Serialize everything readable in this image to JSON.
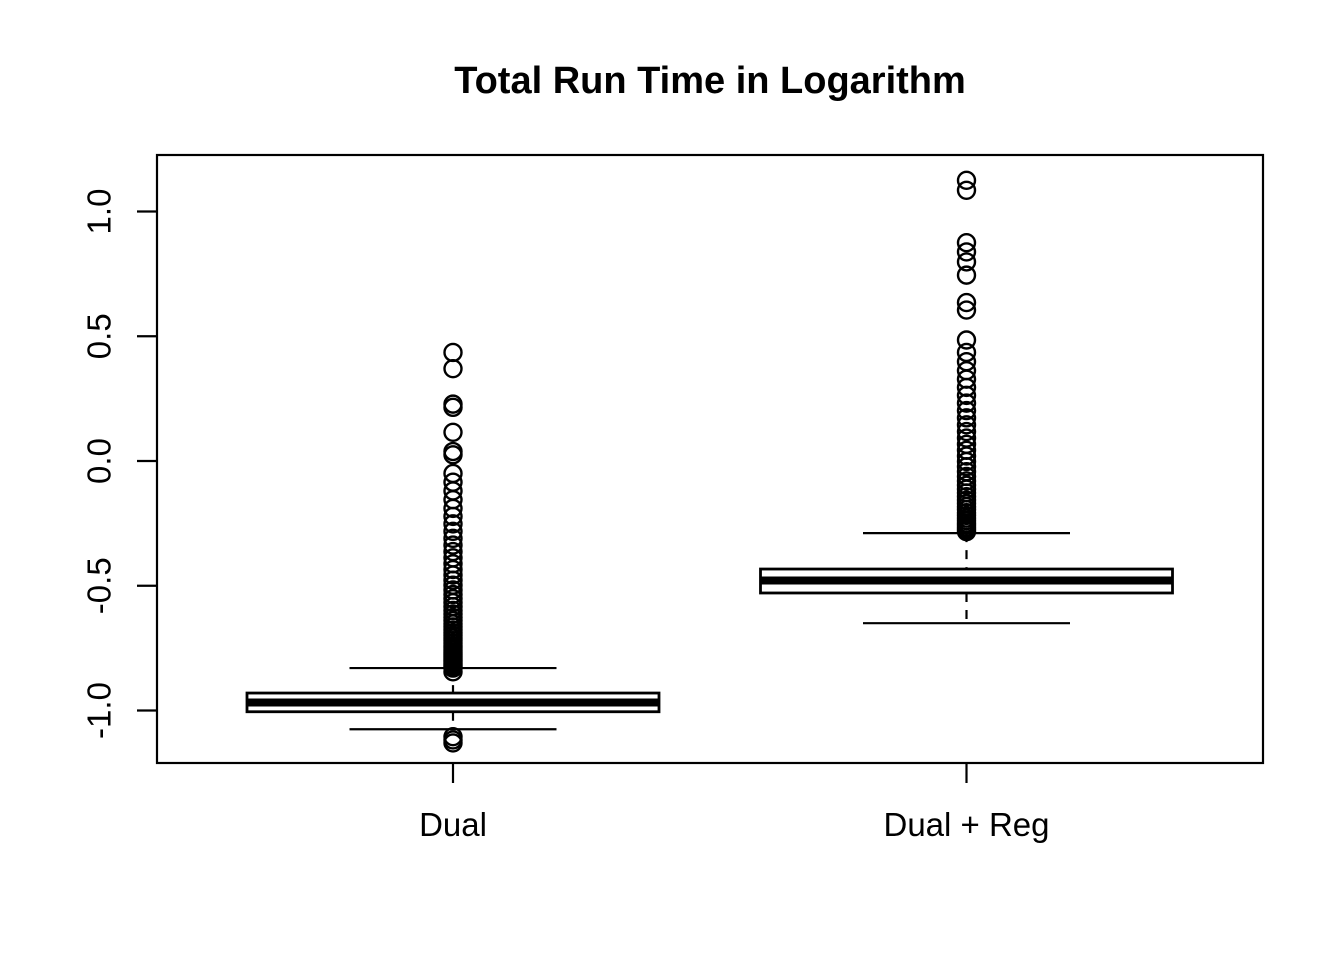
{
  "colors": {
    "stroke": "#000000",
    "background": "#ffffff"
  },
  "chart_data": {
    "type": "boxplot",
    "title": "Total Run Time in Logarithm",
    "xlabel": "",
    "ylabel": "",
    "categories": [
      "Dual",
      "Dual + Reg"
    ],
    "ylim": [
      -1.21,
      1.23
    ],
    "yticks": [
      1.0,
      0.5,
      0.0,
      -0.5,
      -1.0
    ],
    "ytick_labels": [
      "1.0",
      "0.5",
      "0.0",
      "-0.5",
      "-1.0"
    ],
    "grid": false,
    "legend": false,
    "series": [
      {
        "name": "Dual",
        "median": -0.968,
        "q1": -1.005,
        "q3": -0.93,
        "whisker_low": -1.075,
        "whisker_high": -0.83,
        "outliers_high": [
          0.435,
          0.37,
          0.228,
          0.215,
          0.115,
          0.038,
          0.025,
          -0.05,
          -0.085,
          -0.12,
          -0.155,
          -0.19,
          -0.222,
          -0.252,
          -0.282,
          -0.31,
          -0.337,
          -0.363,
          -0.388,
          -0.412,
          -0.435,
          -0.457,
          -0.478,
          -0.498,
          -0.517,
          -0.535,
          -0.552,
          -0.568,
          -0.584,
          -0.599,
          -0.613,
          -0.627,
          -0.64,
          -0.653,
          -0.665,
          -0.677,
          -0.688,
          -0.699,
          -0.71,
          -0.72,
          -0.73,
          -0.74,
          -0.749,
          -0.758,
          -0.767,
          -0.775,
          -0.783,
          -0.791,
          -0.798,
          -0.805,
          -0.812,
          -0.818,
          -0.824,
          -0.83,
          -0.845
        ],
        "outliers_low": [
          -1.105,
          -1.118,
          -1.13
        ]
      },
      {
        "name": "Dual + Reg",
        "median": -0.479,
        "q1": -0.529,
        "q3": -0.433,
        "whisker_low": -0.65,
        "whisker_high": -0.289,
        "outliers_high": [
          1.125,
          1.085,
          0.875,
          0.838,
          0.798,
          0.745,
          0.635,
          0.605,
          0.485,
          0.435,
          0.398,
          0.362,
          0.328,
          0.295,
          0.263,
          0.232,
          0.202,
          0.173,
          0.145,
          0.118,
          0.092,
          0.067,
          0.043,
          0.02,
          -0.002,
          -0.023,
          -0.043,
          -0.062,
          -0.08,
          -0.097,
          -0.113,
          -0.128,
          -0.143,
          -0.157,
          -0.17,
          -0.183,
          -0.195,
          -0.207,
          -0.218,
          -0.229,
          -0.239,
          -0.249,
          -0.258,
          -0.267,
          -0.275,
          -0.283
        ],
        "outliers_low": []
      }
    ]
  }
}
